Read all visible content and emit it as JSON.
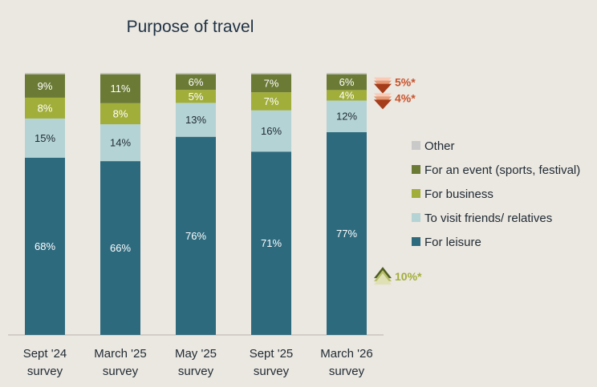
{
  "chart_data": {
    "type": "bar",
    "stacked": true,
    "title": "Purpose of travel",
    "categories": [
      "Sept '24\nsurvey",
      "March '25\nsurvey",
      "May '25\nsurvey",
      "Sept '25\nsurvey",
      "March '26\nsurvey"
    ],
    "series": [
      {
        "name": "For leisure",
        "values": [
          68,
          66,
          76,
          71,
          77
        ],
        "color": "#2e6a7e",
        "label_color": "#ffffff"
      },
      {
        "name": "To visit friends/ relatives",
        "values": [
          15,
          14,
          13,
          16,
          12
        ],
        "color": "#b4d3d5",
        "label_color": "#1f2a33"
      },
      {
        "name": "For business",
        "values": [
          8,
          8,
          5,
          7,
          4
        ],
        "color": "#a2ae3a",
        "label_color": "#ffffff"
      },
      {
        "name": "For an event (sports, festival)",
        "values": [
          9,
          11,
          6,
          7,
          6
        ],
        "color": "#6b7a35",
        "label_color": "#ffffff"
      },
      {
        "name": "Other",
        "values": [
          0.5,
          0.5,
          0.5,
          0.5,
          0.5
        ],
        "color": "#c9c9c9",
        "show_label": false
      }
    ],
    "legend_order": [
      "Other",
      "For an event (sports, festival)",
      "For business",
      "To visit friends/ relatives",
      "For leisure"
    ],
    "legend_position": "right",
    "ylim": [
      0,
      100
    ],
    "grid": false,
    "annotations": [
      {
        "text": "5%*",
        "series": "For an event (sports, festival)",
        "direction": "down",
        "color": "#c8532a"
      },
      {
        "text": "4%*",
        "series": "For business",
        "direction": "down",
        "color": "#c8532a"
      },
      {
        "text": "10%*",
        "series": "For leisure",
        "direction": "up",
        "color": "#a2ae3a"
      }
    ]
  }
}
